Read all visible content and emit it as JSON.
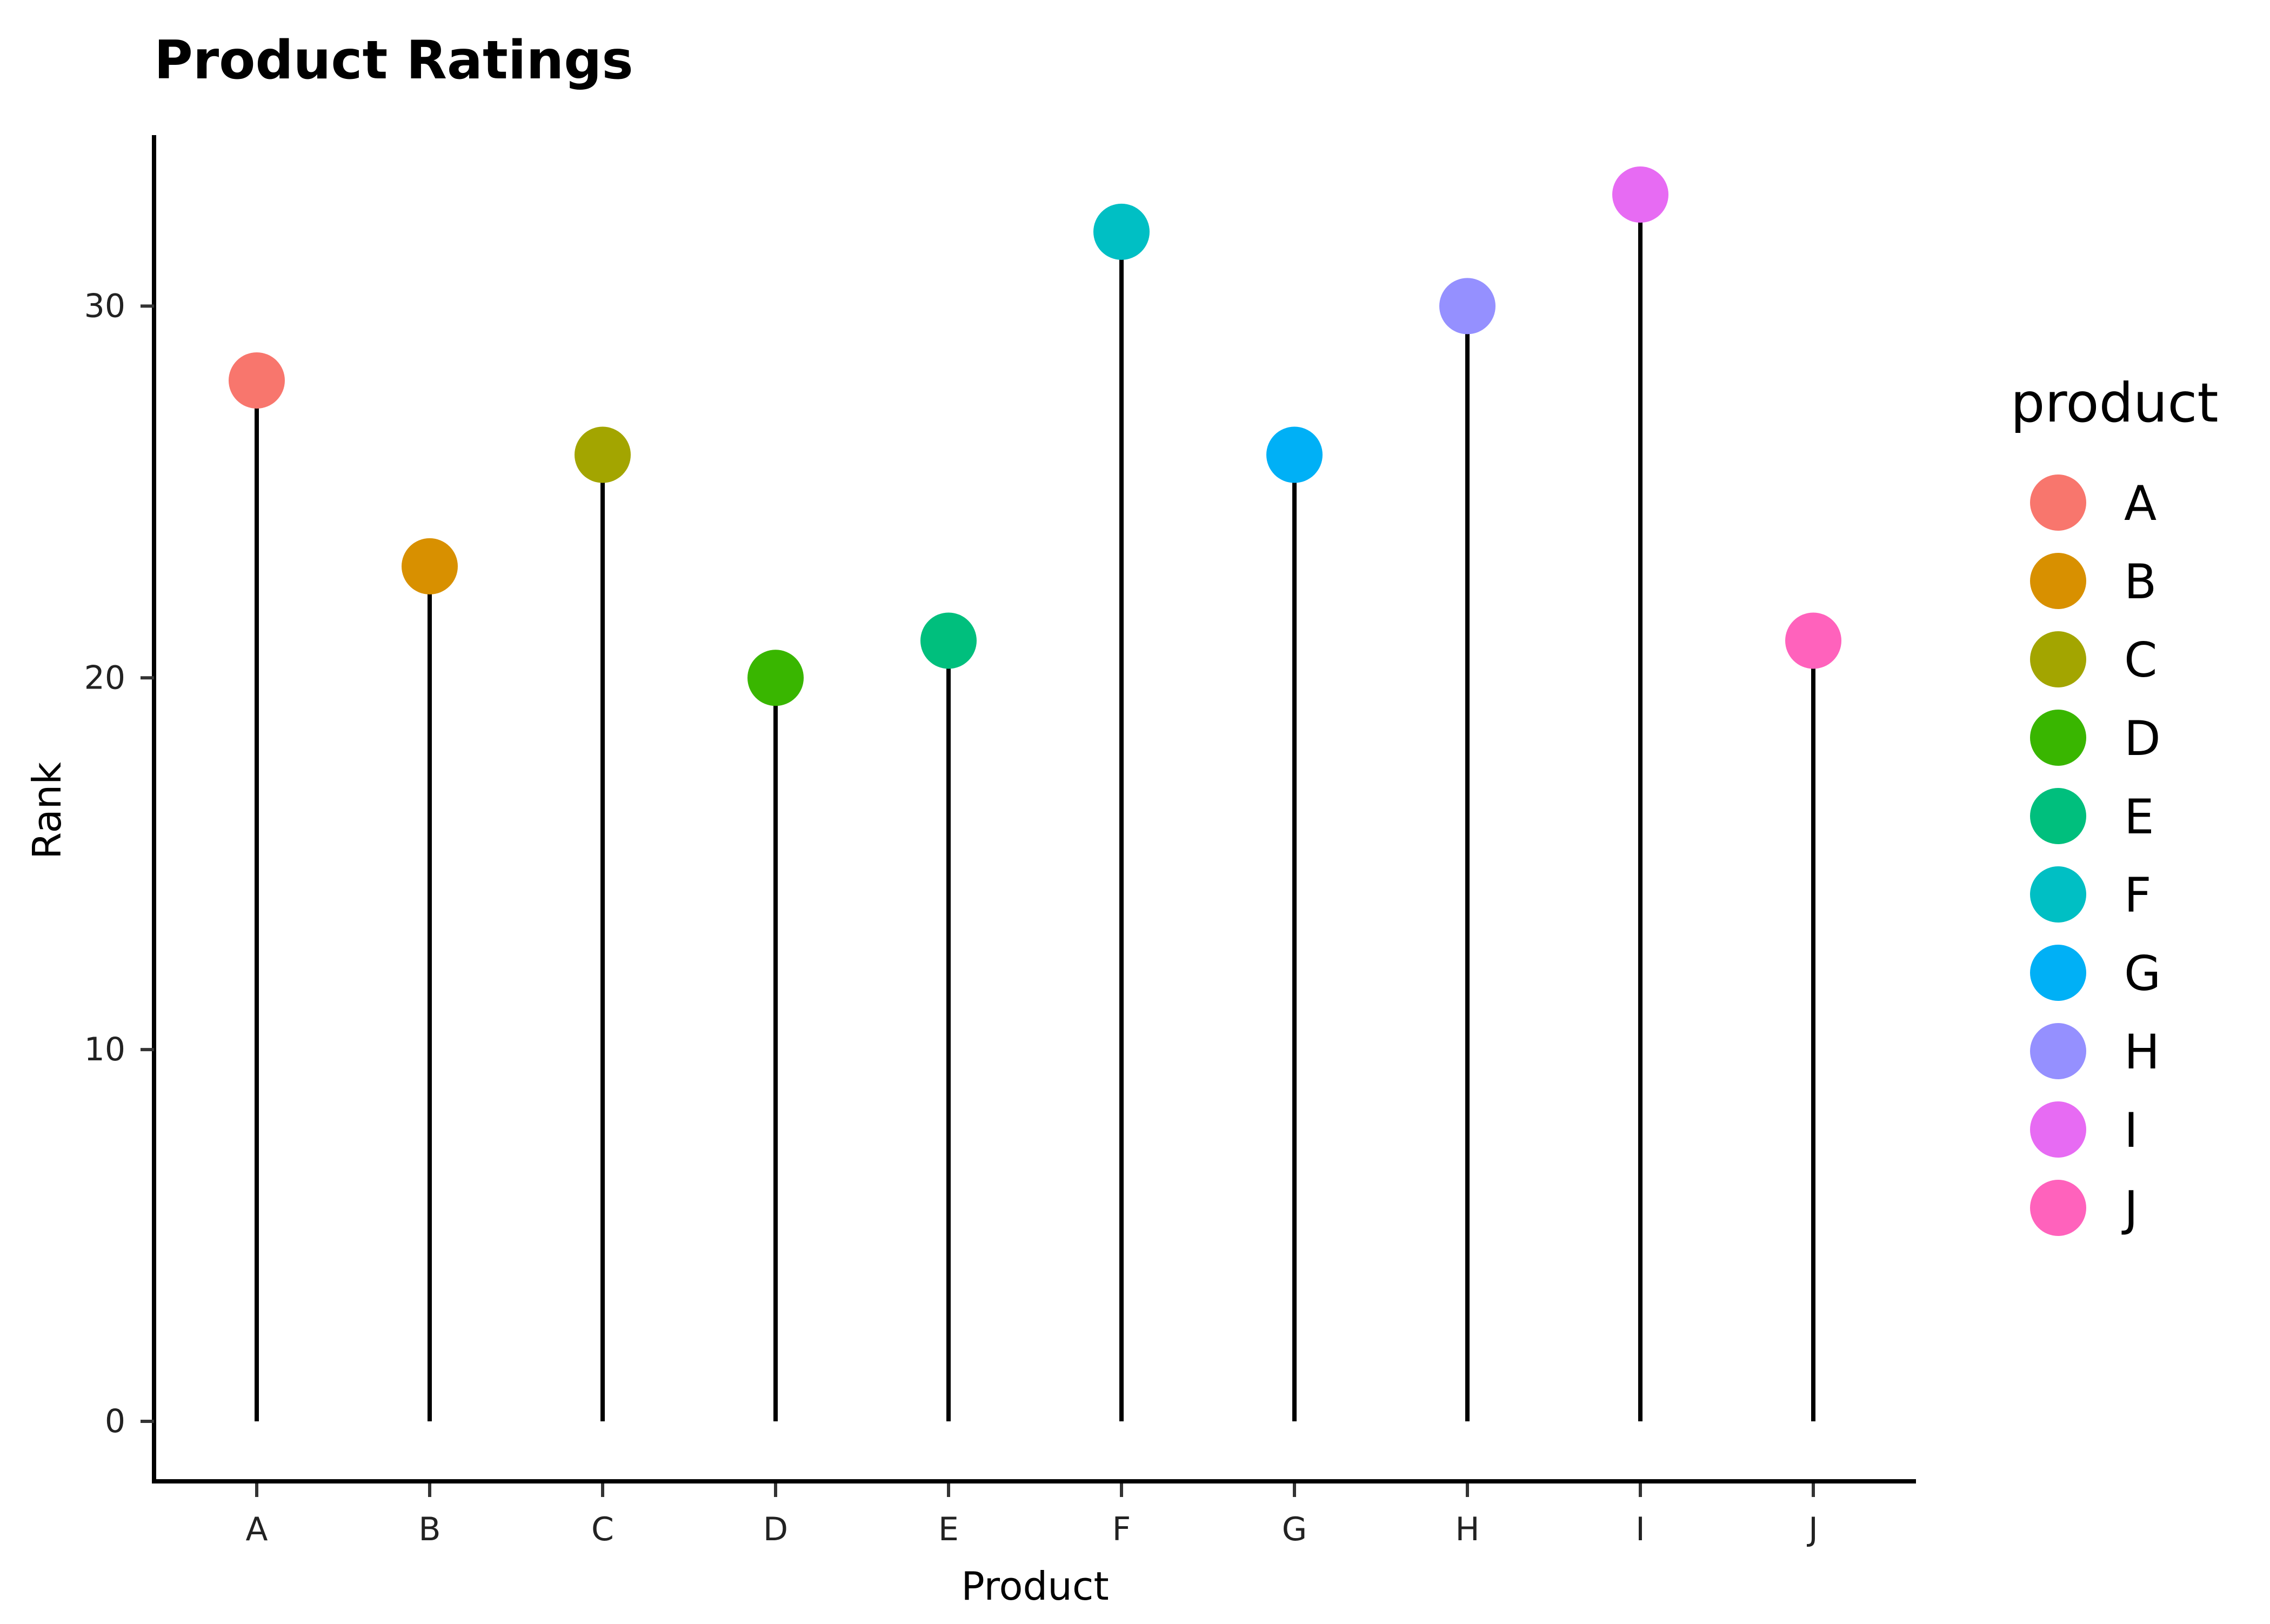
{
  "chart_data": {
    "type": "lollipop",
    "title": "Product Ratings",
    "xlabel": "Product",
    "ylabel": "Rank",
    "categories": [
      "A",
      "B",
      "C",
      "D",
      "E",
      "F",
      "G",
      "H",
      "I",
      "J"
    ],
    "values": [
      28,
      23,
      26,
      20,
      21,
      32,
      26,
      30,
      33,
      21
    ],
    "ylim": [
      -1.6,
      34.6
    ],
    "yticks": [
      0,
      10,
      20,
      30
    ],
    "colors": [
      "#F8766D",
      "#D89000",
      "#A3A500",
      "#39B600",
      "#00BF7D",
      "#00BFC4",
      "#00B0F6",
      "#9590FF",
      "#E76BF3",
      "#FF62BC"
    ],
    "grid": false,
    "legend": {
      "title": "product",
      "position": "right",
      "entries": [
        "A",
        "B",
        "C",
        "D",
        "E",
        "F",
        "G",
        "H",
        "I",
        "J"
      ]
    }
  }
}
